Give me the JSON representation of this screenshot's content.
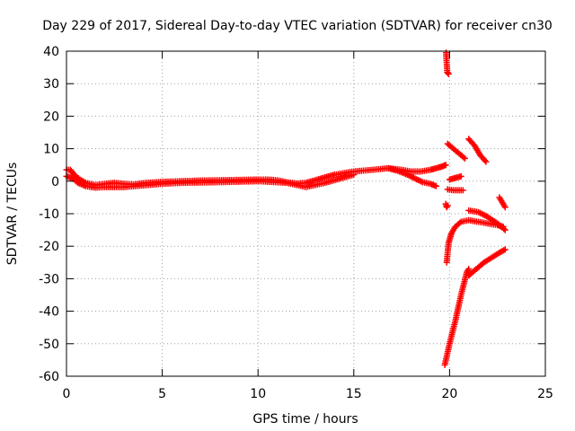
{
  "chart_data": {
    "type": "scatter",
    "title": "Day 229 of 2017, Sidereal Day-to-day VTEC variation (SDTVAR) for receiver cn30",
    "xlabel": "GPS time / hours",
    "ylabel": "SDTVAR / TECUs",
    "xlim": [
      0,
      25
    ],
    "ylim": [
      -60,
      40
    ],
    "xticks": [
      0,
      5,
      10,
      15,
      20,
      25
    ],
    "yticks": [
      40,
      30,
      20,
      10,
      0,
      -10,
      -20,
      -30,
      -40,
      -50,
      -60
    ],
    "grid": true,
    "marker": "+",
    "color": "#ff0000",
    "series": [
      {
        "name": "main-band",
        "x": [
          0.0,
          0.2,
          0.4,
          0.7,
          1.0,
          1.5,
          2.0,
          2.5,
          3.0,
          3.5,
          4.0,
          5.0,
          6.0,
          7.0,
          8.0,
          9.0,
          10.0,
          10.5,
          11.0,
          11.5,
          12.0,
          12.5,
          13.0,
          13.5,
          14.0,
          15.0,
          16.0,
          16.8,
          17.5,
          18.0,
          18.5,
          19.0,
          19.3,
          19.6,
          19.8
        ],
        "y": [
          3.5,
          3.5,
          2.0,
          0.5,
          -0.5,
          -1.2,
          -0.8,
          -0.5,
          -0.8,
          -1.0,
          -0.6,
          -0.2,
          0.0,
          0.2,
          0.3,
          0.4,
          0.5,
          0.5,
          0.3,
          -0.3,
          -0.7,
          -0.5,
          0.3,
          1.2,
          2.0,
          3.0,
          3.5,
          4.0,
          3.5,
          3.0,
          3.0,
          3.5,
          4.0,
          4.5,
          5.0
        ]
      },
      {
        "name": "spread-lower",
        "x": [
          0.0,
          0.3,
          0.6,
          1.0,
          1.5,
          2.0,
          2.5,
          3.0,
          4.0,
          5.0,
          6.0,
          8.0,
          10.0,
          11.5,
          12.5,
          13.5,
          15.0
        ],
        "y": [
          1.5,
          1.0,
          -0.5,
          -1.5,
          -2.0,
          -1.8,
          -1.8,
          -1.8,
          -1.3,
          -0.8,
          -0.5,
          -0.3,
          0.0,
          -0.5,
          -1.8,
          -0.5,
          2.0
        ]
      },
      {
        "name": "descending-branch",
        "x": [
          16.8,
          17.3,
          17.8,
          18.2,
          18.6,
          19.0,
          19.3
        ],
        "y": [
          4.0,
          3.2,
          2.0,
          0.8,
          -0.3,
          -0.8,
          -1.5
        ]
      },
      {
        "name": "spike-top",
        "x": [
          19.82,
          19.88,
          19.95
        ],
        "y": [
          39.5,
          33.5,
          33.0
        ]
      },
      {
        "name": "isolated-low",
        "x": [
          19.8,
          19.85,
          19.9
        ],
        "y": [
          -7.0,
          -8.0,
          -7.5
        ]
      },
      {
        "name": "short-upper",
        "x": [
          19.9,
          20.2,
          20.5,
          20.8
        ],
        "y": [
          11.5,
          10.0,
          8.5,
          7.0
        ]
      },
      {
        "name": "steep-upper",
        "x": [
          21.0,
          21.3,
          21.6,
          21.9
        ],
        "y": [
          13.0,
          11.0,
          8.0,
          6.0
        ]
      },
      {
        "name": "small-mid",
        "x": [
          20.0,
          20.3,
          20.6
        ],
        "y": [
          0.5,
          1.0,
          1.5
        ]
      },
      {
        "name": "small-low",
        "x": [
          19.9,
          20.2,
          20.5,
          20.7
        ],
        "y": [
          -2.5,
          -2.8,
          -2.8,
          -2.8
        ]
      },
      {
        "name": "curve-A",
        "x": [
          19.85,
          19.95,
          20.1,
          20.3,
          20.6,
          21.0,
          21.5,
          22.0,
          22.5,
          22.8
        ],
        "y": [
          -25.0,
          -19.0,
          -16.0,
          -14.0,
          -12.5,
          -12.0,
          -12.5,
          -13.0,
          -13.5,
          -14.0
        ]
      },
      {
        "name": "curve-B",
        "x": [
          21.0,
          21.5,
          22.0,
          22.5,
          22.9
        ],
        "y": [
          -9.0,
          -9.5,
          -11.0,
          -13.0,
          -15.0
        ]
      },
      {
        "name": "short-far-right",
        "x": [
          22.6,
          22.75,
          22.9
        ],
        "y": [
          -5.0,
          -6.5,
          -8.0
        ]
      },
      {
        "name": "steep-lower",
        "x": [
          19.75,
          20.0,
          20.3,
          20.6,
          20.9,
          21.0
        ],
        "y": [
          -56.5,
          -50.0,
          -43.0,
          -35.0,
          -28.0,
          -27.0
        ]
      },
      {
        "name": "lower-continuation",
        "x": [
          21.0,
          21.4,
          21.8,
          22.2,
          22.6,
          22.9
        ],
        "y": [
          -29.0,
          -27.0,
          -25.0,
          -23.5,
          -22.0,
          -21.0
        ]
      }
    ]
  }
}
